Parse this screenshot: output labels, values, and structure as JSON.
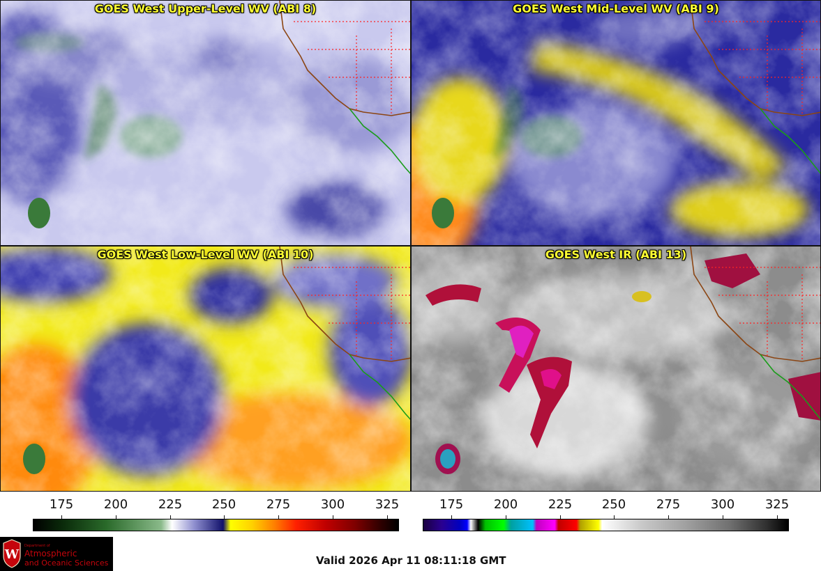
{
  "panels": {
    "upper_wv": {
      "title": "GOES West Upper-Level WV (ABI 8)"
    },
    "mid_wv": {
      "title": "GOES West Mid-Level WV (ABI 9)"
    },
    "low_wv": {
      "title": "GOES West Low-Level WV (ABI 10)"
    },
    "ir": {
      "title": "GOES West IR (ABI 13)"
    }
  },
  "colorbars": {
    "wv": {
      "ticks": [
        "175",
        "200",
        "225",
        "250",
        "275",
        "300",
        "325"
      ]
    },
    "ir": {
      "ticks": [
        "175",
        "200",
        "225",
        "250",
        "275",
        "300",
        "325"
      ]
    }
  },
  "logo": {
    "dept": "Department of",
    "line1": "Atmospheric",
    "line2": "and Oceanic Sciences"
  },
  "valid_time": "Valid 2026 Apr 11 08:11:18 GMT",
  "colors": {
    "title_text": "#ffff33",
    "coast": "#8b4513",
    "state_lines": "#ff2222",
    "mexico_coast": "#1a9c1a"
  }
}
